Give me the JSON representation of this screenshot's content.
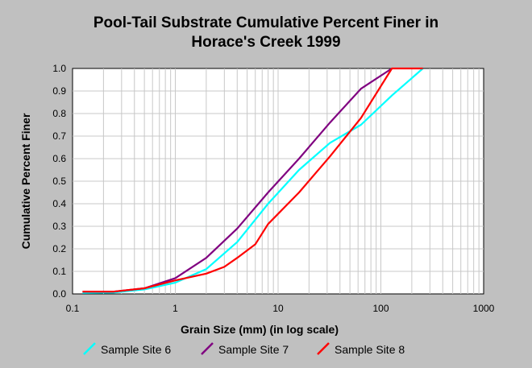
{
  "chart_data": {
    "type": "line",
    "title_line1": "Pool-Tail Substrate Cumulative Percent Finer in",
    "title_line2": "Horace's Creek 1999",
    "xlabel": "Grain Size (mm) (in log scale)",
    "ylabel": "Cumulative Percent Finer",
    "xscale": "log",
    "xlim": [
      0.1,
      1000
    ],
    "ylim": [
      0,
      1.0
    ],
    "x_ticks": [
      "0.1",
      "1",
      "10",
      "100",
      "1000"
    ],
    "y_ticks": [
      "0.0",
      "0.1",
      "0.2",
      "0.3",
      "0.4",
      "0.5",
      "0.6",
      "0.7",
      "0.8",
      "0.9",
      "1.0"
    ],
    "grid": true,
    "legend_position": "bottom",
    "series": [
      {
        "name": "Sample Site 6",
        "color": "#00ffff",
        "points": [
          [
            0.125,
            0.005
          ],
          [
            0.25,
            0.006
          ],
          [
            0.5,
            0.02
          ],
          [
            1,
            0.05
          ],
          [
            2,
            0.11
          ],
          [
            4,
            0.23
          ],
          [
            8,
            0.4
          ],
          [
            16,
            0.55
          ],
          [
            32,
            0.67
          ],
          [
            64,
            0.75
          ],
          [
            128,
            0.88
          ],
          [
            256,
            1.0
          ]
        ]
      },
      {
        "name": "Sample Site 7",
        "color": "#800080",
        "points": [
          [
            0.125,
            0.01
          ],
          [
            0.25,
            0.01
          ],
          [
            0.5,
            0.025
          ],
          [
            1,
            0.07
          ],
          [
            2,
            0.16
          ],
          [
            4,
            0.29
          ],
          [
            8,
            0.45
          ],
          [
            16,
            0.6
          ],
          [
            32,
            0.76
          ],
          [
            64,
            0.91
          ],
          [
            128,
            1.0
          ]
        ]
      },
      {
        "name": "Sample Site 8",
        "color": "#ff0000",
        "points": [
          [
            0.125,
            0.01
          ],
          [
            0.25,
            0.01
          ],
          [
            0.5,
            0.025
          ],
          [
            1,
            0.06
          ],
          [
            2,
            0.09
          ],
          [
            3,
            0.12
          ],
          [
            4,
            0.16
          ],
          [
            6,
            0.22
          ],
          [
            8,
            0.31
          ],
          [
            16,
            0.45
          ],
          [
            32,
            0.61
          ],
          [
            64,
            0.78
          ],
          [
            128,
            1.0
          ],
          [
            256,
            1.0
          ]
        ]
      }
    ]
  }
}
